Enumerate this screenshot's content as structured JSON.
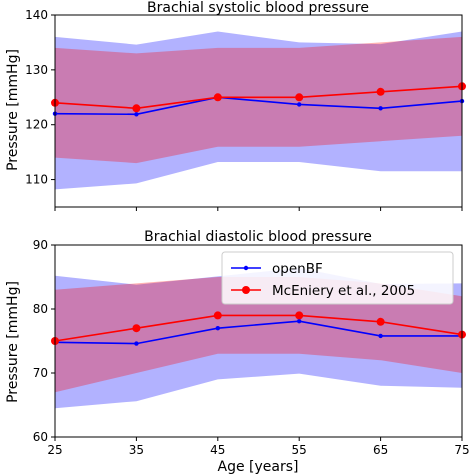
{
  "chart_data": [
    {
      "type": "line",
      "title": "Brachial systolic blood pressure",
      "xlabel": "",
      "ylabel": "Pressure [mmHg]",
      "x": [
        25,
        35,
        45,
        55,
        65,
        75
      ],
      "xlim": [
        25,
        75
      ],
      "ylim": [
        105,
        140
      ],
      "yticks": [
        110,
        120,
        130,
        140
      ],
      "xticks": [
        25,
        35,
        45,
        55,
        65,
        75
      ],
      "grid": false,
      "series": [
        {
          "name": "openBF",
          "values": [
            122,
            121.9,
            125,
            123.7,
            123,
            124.3
          ],
          "band_lower": [
            108.2,
            109.3,
            113.2,
            113.2,
            111.5,
            111.5
          ],
          "band_upper": [
            136,
            134.6,
            137,
            135,
            134.7,
            137
          ],
          "color": "#0000ff"
        },
        {
          "name": "McEniery et al., 2005",
          "values": [
            124,
            123,
            125,
            125,
            126,
            127
          ],
          "band_lower": [
            114,
            113,
            116,
            116,
            117,
            118
          ],
          "band_upper": [
            134,
            133,
            134,
            134,
            135,
            136
          ],
          "color": "#ff0000"
        }
      ]
    },
    {
      "type": "line",
      "title": "Brachial diastolic blood pressure",
      "xlabel": "Age [years]",
      "ylabel": "Pressure [mmHg]",
      "x": [
        25,
        35,
        45,
        55,
        65,
        75
      ],
      "xlim": [
        25,
        75
      ],
      "ylim": [
        60,
        90
      ],
      "yticks": [
        60,
        70,
        80,
        90
      ],
      "xticks": [
        25,
        35,
        45,
        55,
        65,
        75
      ],
      "grid": false,
      "legend": "top-right",
      "series": [
        {
          "name": "openBF",
          "values": [
            74.8,
            74.6,
            77,
            78.1,
            75.8,
            75.8
          ],
          "band_lower": [
            64.5,
            65.6,
            69,
            69.9,
            68,
            67.7
          ],
          "band_upper": [
            85.2,
            83.8,
            85.1,
            86.4,
            83.9,
            84
          ],
          "color": "#0000ff"
        },
        {
          "name": "McEniery et al., 2005",
          "values": [
            75,
            77,
            79,
            79,
            78,
            76
          ],
          "band_lower": [
            67,
            70,
            73,
            73,
            72,
            70
          ],
          "band_upper": [
            83,
            84,
            85,
            85,
            84,
            82
          ],
          "color": "#ff0000"
        }
      ]
    }
  ]
}
